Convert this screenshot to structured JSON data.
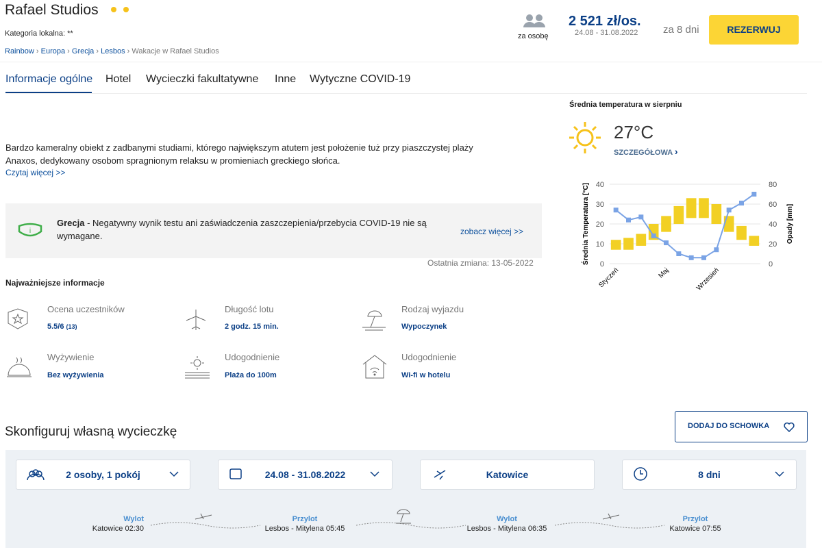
{
  "header": {
    "title": "Rafael Studios",
    "category": "Kategoria lokalna: **",
    "per_person": "za osobę",
    "price": "2 521 zł/os.",
    "price_dates": "24.08 - 31.08.2022",
    "duration": "za 8 dni",
    "book_button": "REZERWUJ",
    "breadcrumbs": [
      "Rainbow",
      "Europa",
      "Grecja",
      "Lesbos",
      "Wakacje w Rafael Studios"
    ]
  },
  "tabs": [
    "Informacje ogólne",
    "Hotel",
    "Wycieczki fakultatywne",
    "Inne",
    "Wytyczne COVID-19"
  ],
  "description": {
    "text": "Bardzo kameralny obiekt z zadbanymi studiami, którego największym atutem jest położenie tuż przy piaszczystej plaży Anaxos, dedykowany osobom spragnionym relaksu w promieniach greckiego słońca.",
    "read_more": "Czytaj więcej >>"
  },
  "covid": {
    "country": "Grecja",
    "text": " - Negatywny wynik testu ani zaświadczenia zaszczepienia/przebycia COVID-19 nie są wymagane.",
    "link": "zobacz więcej >>"
  },
  "last_change": "Ostatnia zmiana: 13-05-2022",
  "key_info": {
    "title": "Najważniejsze informacje",
    "items": [
      {
        "label": "Ocena uczestników",
        "value": "5.5/6",
        "count": "(13)"
      },
      {
        "label": "Długość lotu",
        "value": "2 godz. 15 min."
      },
      {
        "label": "Rodzaj wyjazdu",
        "value": "Wypoczynek"
      },
      {
        "label": "Wyżywienie",
        "value": "Bez wyżywienia"
      },
      {
        "label": "Udogodnienie",
        "value": "Plaża do 100m"
      },
      {
        "label": "Udogodnienie",
        "value": "Wi-fi w hotelu"
      }
    ]
  },
  "weather": {
    "temperature": "27°C",
    "details": "SZCZEGÓŁOWA"
  },
  "chart_data": {
    "type": "combo",
    "title": "Średnia temperatura w sierpniu",
    "y_label": "Średnia Temperatura [°C]",
    "y2_label": "Opady [mm]",
    "categories": [
      "Styczeń",
      null,
      null,
      null,
      "Maj",
      null,
      null,
      null,
      "Wrzesień",
      null,
      null,
      null
    ],
    "series": [
      {
        "type": "range",
        "color": "#f2d024",
        "low": [
          7,
          7,
          9,
          12,
          16,
          20,
          23,
          23,
          20,
          16,
          12,
          9
        ],
        "high": [
          12,
          13,
          15,
          20,
          24,
          29,
          33,
          33,
          30,
          24,
          19,
          14
        ]
      },
      {
        "type": "line",
        "axis": "y2",
        "color": "#7aa3e5",
        "values": [
          54,
          44,
          47,
          28,
          21,
          10,
          6,
          6,
          14,
          54,
          61,
          70
        ]
      }
    ],
    "ylim": [
      0,
      40
    ],
    "yticks": [
      0,
      10,
      20,
      30,
      40
    ],
    "y2lim": [
      0,
      80
    ],
    "y2ticks": [
      0,
      20,
      40,
      60,
      80
    ],
    "grid": true
  },
  "configure": {
    "title": "Skonfiguruj własną wycieczkę",
    "save_button": "DODAJ DO SCHOWKA",
    "selectors": [
      "2 osoby, 1 pokój",
      "24.08 - 31.08.2022",
      "Katowice",
      "8 dni"
    ],
    "flights": [
      {
        "label": "Wylot",
        "place": "Katowice 02:30"
      },
      {
        "label": "Przylot",
        "place": "Lesbos - Mitylena 05:45"
      },
      {
        "label": "Wylot",
        "place": "Lesbos - Mitylena 06:35"
      },
      {
        "label": "Przylot",
        "place": "Katowice 07:55"
      }
    ]
  }
}
